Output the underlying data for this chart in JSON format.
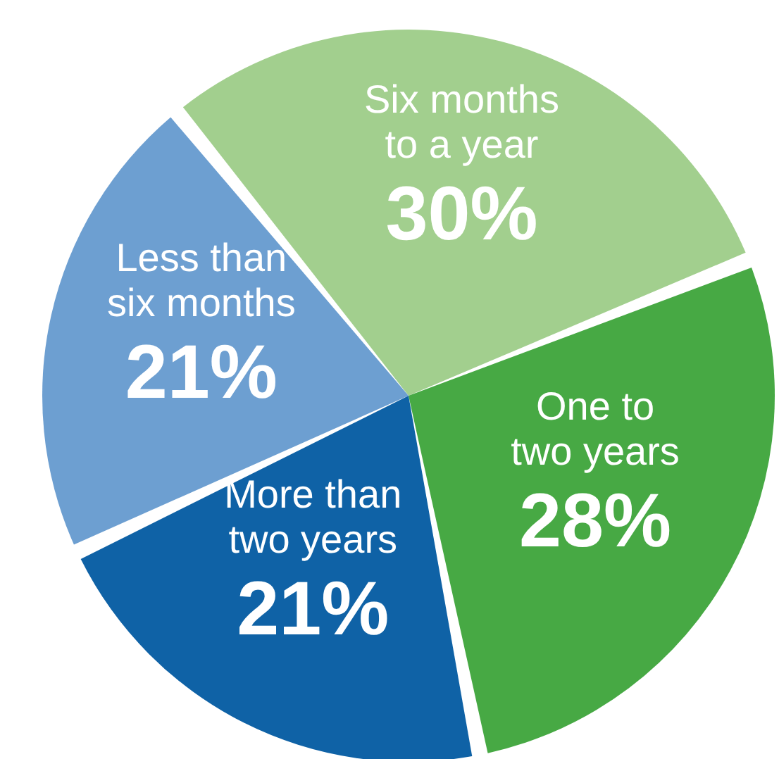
{
  "chart_data": {
    "type": "pie",
    "categories": [
      "Six months to a year",
      "One to two years",
      "More than two years",
      "Less than six months"
    ],
    "values": [
      30,
      28,
      21,
      21
    ],
    "colors": [
      "#a2cf8e",
      "#47a944",
      "#0f62a6",
      "#6d9fd1"
    ],
    "value_labels": [
      "30%",
      "28%",
      "21%",
      "21%"
    ],
    "legend": false
  }
}
